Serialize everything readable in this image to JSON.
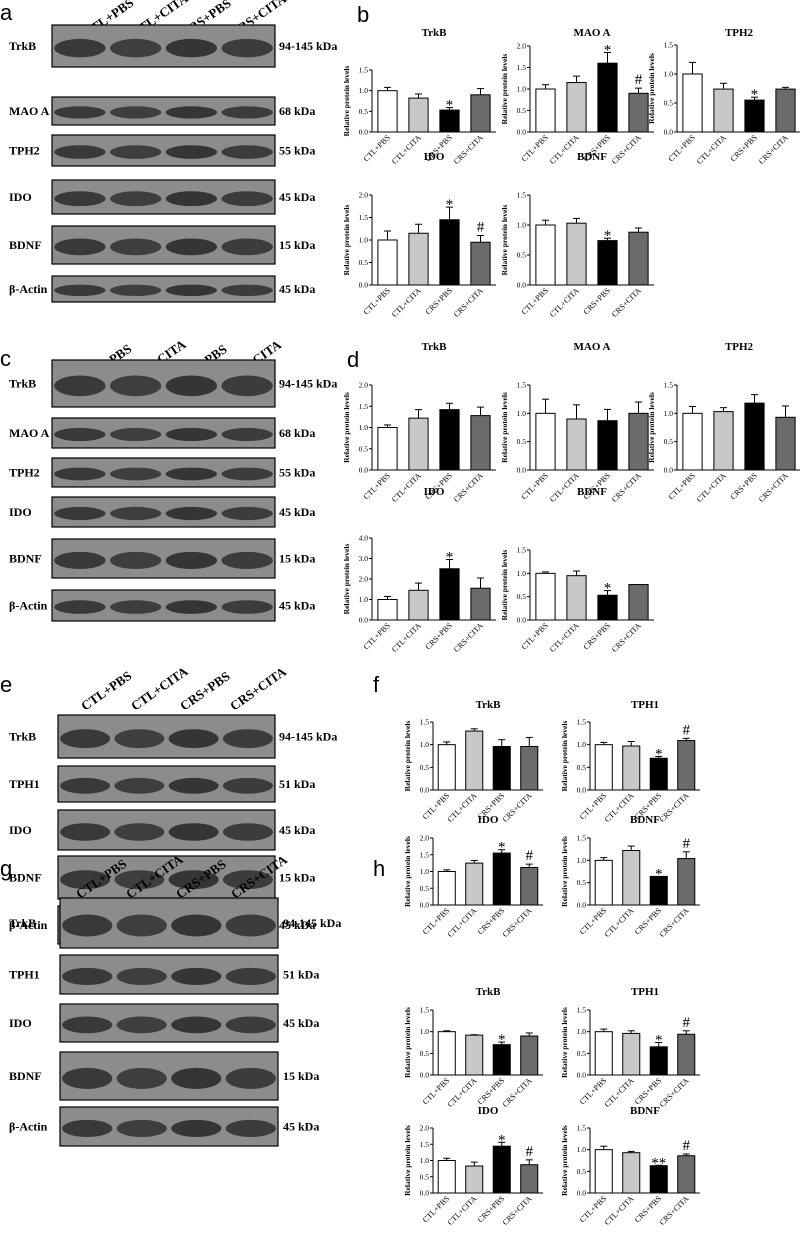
{
  "figure": {
    "panels": [
      {
        "label": "a",
        "type": "blot",
        "lanes": [
          "CTL+PBS",
          "CTL+CITA",
          "CRS+PBS",
          "CRS+CITA"
        ],
        "rows": [
          {
            "protein": "TrkB",
            "kda": "94-145 kDa"
          },
          {
            "protein": "MAO A",
            "kda": "68 kDa"
          },
          {
            "protein": "TPH2",
            "kda": "55 kDa"
          },
          {
            "protein": "IDO",
            "kda": "45 kDa"
          },
          {
            "protein": "BDNF",
            "kda": "15 kDa"
          },
          {
            "protein": "β-Actin",
            "kda": "45 kDa"
          }
        ]
      },
      {
        "label": "c",
        "type": "blot",
        "lanes": [
          "CTL+PBS",
          "CTL+CITA",
          "CRS+PBS",
          "CRS+CITA"
        ],
        "rows": [
          {
            "protein": "TrkB",
            "kda": "94-145 kDa"
          },
          {
            "protein": "MAO A",
            "kda": "68 kDa"
          },
          {
            "protein": "TPH2",
            "kda": "55 kDa"
          },
          {
            "protein": "IDO",
            "kda": "45 kDa"
          },
          {
            "protein": "BDNF",
            "kda": "15 kDa"
          },
          {
            "protein": "β-Actin",
            "kda": "45 kDa"
          }
        ]
      },
      {
        "label": "e",
        "type": "blot",
        "lanes": [
          "CTL+PBS",
          "CTL+CITA",
          "CRS+PBS",
          "CRS+CITA"
        ],
        "rows": [
          {
            "protein": "TrkB",
            "kda": "94-145 kDa"
          },
          {
            "protein": "TPH1",
            "kda": "51 kDa"
          },
          {
            "protein": "IDO",
            "kda": "45 kDa"
          },
          {
            "protein": "BDNF",
            "kda": "15 kDa"
          },
          {
            "protein": "β-Actin",
            "kda": "45 kDa"
          }
        ]
      },
      {
        "label": "g",
        "type": "blot",
        "lanes": [
          "CTL+PBS",
          "CTL+CITA",
          "CRS+PBS",
          "CRS+CITA"
        ],
        "rows": [
          {
            "protein": "TrkB",
            "kda": "94-145 kDa"
          },
          {
            "protein": "TPH1",
            "kda": "51 kDa"
          },
          {
            "protein": "IDO",
            "kda": "45 kDa"
          },
          {
            "protein": "BDNF",
            "kda": "15 kDa"
          },
          {
            "protein": "β-Actin",
            "kda": "45 kDa"
          }
        ]
      },
      {
        "label": "b",
        "type": "bars"
      },
      {
        "label": "d",
        "type": "bars"
      },
      {
        "label": "f",
        "type": "bars"
      },
      {
        "label": "h",
        "type": "bars"
      }
    ],
    "bar_colors": [
      "#ffffff",
      "#c8c8c8",
      "#000000",
      "#6b6b6b"
    ]
  },
  "chart_data": [
    {
      "panel": "b",
      "type": "bar",
      "title": "TrkB",
      "ylabel": "Relative protein levels",
      "categories": [
        "CTL+PBS",
        "CTL+CITA",
        "CRS+PBS",
        "CRS+CITA"
      ],
      "values": [
        1.0,
        0.82,
        0.53,
        0.9
      ],
      "errors": [
        0.08,
        0.1,
        0.06,
        0.15
      ],
      "ylim": [
        0,
        1.5
      ],
      "yticks": [
        "0.0",
        "0.5",
        "1.0",
        "1.5"
      ],
      "markers": [
        "",
        "",
        "*",
        ""
      ]
    },
    {
      "panel": "b",
      "type": "bar",
      "title": "MAO A",
      "ylabel": "Relative protein levels",
      "categories": [
        "CTL+PBS",
        "CTL+CITA",
        "CRS+PBS",
        "CRS+CITA"
      ],
      "values": [
        1.0,
        1.15,
        1.6,
        0.9
      ],
      "errors": [
        0.1,
        0.15,
        0.25,
        0.12
      ],
      "ylim": [
        0,
        2.0
      ],
      "yticks": [
        "0.0",
        "0.5",
        "1.0",
        "1.5",
        "2.0"
      ],
      "markers": [
        "",
        "",
        "*",
        "#"
      ]
    },
    {
      "panel": "b",
      "type": "bar",
      "title": "TPH2",
      "ylabel": "Relative protein levels",
      "categories": [
        "CTL+PBS",
        "CTL+CITA",
        "CRS+PBS",
        "CRS+CITA"
      ],
      "values": [
        1.0,
        0.74,
        0.55,
        0.74
      ],
      "errors": [
        0.2,
        0.1,
        0.05,
        0.03
      ],
      "ylim": [
        0,
        1.5
      ],
      "yticks": [
        "0.0",
        "0.5",
        "1.0",
        "1.5"
      ],
      "markers": [
        "",
        "",
        "*",
        ""
      ]
    },
    {
      "panel": "b",
      "type": "bar",
      "title": "IDO",
      "ylabel": "Relative protein levels",
      "categories": [
        "CTL+PBS",
        "CTL+CITA",
        "CRS+PBS",
        "CRS+CITA"
      ],
      "values": [
        1.0,
        1.15,
        1.45,
        0.95
      ],
      "errors": [
        0.2,
        0.2,
        0.28,
        0.15
      ],
      "ylim": [
        0,
        2.0
      ],
      "yticks": [
        "0.0",
        "0.5",
        "1.0",
        "1.5",
        "2.0"
      ],
      "markers": [
        "",
        "",
        "*",
        "#"
      ]
    },
    {
      "panel": "b",
      "type": "bar",
      "title": "BDNF",
      "ylabel": "Relative protein levels",
      "categories": [
        "CTL+PBS",
        "CTL+CITA",
        "CRS+PBS",
        "CRS+CITA"
      ],
      "values": [
        1.0,
        1.03,
        0.74,
        0.88
      ],
      "errors": [
        0.08,
        0.08,
        0.04,
        0.07
      ],
      "ylim": [
        0,
        1.5
      ],
      "yticks": [
        "0.0",
        "0.5",
        "1.0",
        "1.5"
      ],
      "markers": [
        "",
        "",
        "*",
        ""
      ]
    },
    {
      "panel": "d",
      "type": "bar",
      "title": "TrkB",
      "ylabel": "Relative protein levels",
      "categories": [
        "CTL+PBS",
        "CTL+CITA",
        "CRS+PBS",
        "CRS+CITA"
      ],
      "values": [
        1.0,
        1.22,
        1.42,
        1.28
      ],
      "errors": [
        0.06,
        0.2,
        0.15,
        0.2
      ],
      "ylim": [
        0,
        2.0
      ],
      "yticks": [
        "0.0",
        "0.5",
        "1.0",
        "1.5",
        "2.0"
      ],
      "markers": [
        "",
        "",
        "",
        ""
      ]
    },
    {
      "panel": "d",
      "type": "bar",
      "title": "MAO A",
      "ylabel": "Relative protein levels",
      "categories": [
        "CTL+PBS",
        "CTL+CITA",
        "CRS+PBS",
        "CRS+CITA"
      ],
      "values": [
        1.0,
        0.9,
        0.87,
        1.0
      ],
      "errors": [
        0.25,
        0.25,
        0.2,
        0.2
      ],
      "ylim": [
        0,
        1.5
      ],
      "yticks": [
        "0.0",
        "0.5",
        "1.0",
        "1.5"
      ],
      "markers": [
        "",
        "",
        "",
        ""
      ]
    },
    {
      "panel": "d",
      "type": "bar",
      "title": "TPH2",
      "ylabel": "Relative protein levels",
      "categories": [
        "CTL+PBS",
        "CTL+CITA",
        "CRS+PBS",
        "CRS+CITA"
      ],
      "values": [
        1.0,
        1.03,
        1.18,
        0.93
      ],
      "errors": [
        0.12,
        0.07,
        0.15,
        0.2
      ],
      "ylim": [
        0,
        1.5
      ],
      "yticks": [
        "0.0",
        "0.5",
        "1.0",
        "1.5"
      ],
      "markers": [
        "",
        "",
        "",
        ""
      ]
    },
    {
      "panel": "d",
      "type": "bar",
      "title": "IDO",
      "ylabel": "Relative protein levels",
      "categories": [
        "CTL+PBS",
        "CTL+CITA",
        "CRS+PBS",
        "CRS+CITA"
      ],
      "values": [
        1.0,
        1.45,
        2.5,
        1.55
      ],
      "errors": [
        0.15,
        0.35,
        0.45,
        0.5
      ],
      "ylim": [
        0,
        4.0
      ],
      "yticks": [
        "0.0",
        "1.0",
        "2.0",
        "3.0",
        "4.0"
      ],
      "markers": [
        "",
        "",
        "*",
        ""
      ]
    },
    {
      "panel": "d",
      "type": "bar",
      "title": "BDNF",
      "ylabel": "Relative protein levels",
      "categories": [
        "CTL+PBS",
        "CTL+CITA",
        "CRS+PBS",
        "CRS+CITA"
      ],
      "values": [
        1.0,
        0.95,
        0.53,
        0.76
      ],
      "errors": [
        0.03,
        0.1,
        0.1,
        0.0
      ],
      "ylim": [
        0,
        1.5
      ],
      "yticks": [
        "0.0",
        "0.5",
        "1.0",
        "1.5"
      ],
      "markers": [
        "",
        "",
        "*",
        ""
      ]
    },
    {
      "panel": "f",
      "type": "bar",
      "title": "TrkB",
      "ylabel": "Relative protein levels",
      "categories": [
        "CTL+PBS",
        "CTL+CITA",
        "CRS+PBS",
        "CRS+CITA"
      ],
      "values": [
        1.0,
        1.3,
        0.96,
        0.96
      ],
      "errors": [
        0.06,
        0.05,
        0.15,
        0.2
      ],
      "ylim": [
        0,
        1.5
      ],
      "yticks": [
        "0.0",
        "0.5",
        "1.0",
        "1.5"
      ],
      "markers": [
        "",
        "",
        "",
        ""
      ]
    },
    {
      "panel": "f",
      "type": "bar",
      "title": "TPH1",
      "ylabel": "Relative protein levels",
      "categories": [
        "CTL+PBS",
        "CTL+CITA",
        "CRS+PBS",
        "CRS+CITA"
      ],
      "values": [
        1.0,
        0.97,
        0.7,
        1.09
      ],
      "errors": [
        0.05,
        0.1,
        0.04,
        0.05
      ],
      "ylim": [
        0,
        1.5
      ],
      "yticks": [
        "0.0",
        "0.5",
        "1.0",
        "1.5"
      ],
      "markers": [
        "",
        "",
        "*",
        "#"
      ]
    },
    {
      "panel": "f",
      "type": "bar",
      "title": "IDO",
      "ylabel": "Relative protein levels",
      "categories": [
        "CTL+PBS",
        "CTL+CITA",
        "CRS+PBS",
        "CRS+CITA"
      ],
      "values": [
        1.0,
        1.25,
        1.55,
        1.12
      ],
      "errors": [
        0.05,
        0.08,
        0.1,
        0.1
      ],
      "ylim": [
        0,
        2.0
      ],
      "yticks": [
        "0.0",
        "0.5",
        "1.0",
        "1.5",
        "2.0"
      ],
      "markers": [
        "",
        "",
        "*",
        "#"
      ]
    },
    {
      "panel": "f",
      "type": "bar",
      "title": "BDNF",
      "ylabel": "Relative protein levels",
      "categories": [
        "CTL+PBS",
        "CTL+CITA",
        "CRS+PBS",
        "CRS+CITA"
      ],
      "values": [
        1.0,
        1.22,
        0.64,
        1.04
      ],
      "errors": [
        0.06,
        0.1,
        0.0,
        0.15
      ],
      "ylim": [
        0,
        1.5
      ],
      "yticks": [
        "0.0",
        "0.5",
        "1.0",
        "1.5"
      ],
      "markers": [
        "",
        "",
        "*",
        "#"
      ]
    },
    {
      "panel": "h",
      "type": "bar",
      "title": "TrkB",
      "ylabel": "Relative protein levels",
      "categories": [
        "CTL+PBS",
        "CTL+CITA",
        "CRS+PBS",
        "CRS+CITA"
      ],
      "values": [
        1.0,
        0.92,
        0.7,
        0.9
      ],
      "errors": [
        0.02,
        0.01,
        0.06,
        0.07
      ],
      "ylim": [
        0,
        1.5
      ],
      "yticks": [
        "0.0",
        "0.5",
        "1.0",
        "1.5"
      ],
      "markers": [
        "",
        "",
        "*",
        ""
      ]
    },
    {
      "panel": "h",
      "type": "bar",
      "title": "TPH1",
      "ylabel": "Relative protein levels",
      "categories": [
        "CTL+PBS",
        "CTL+CITA",
        "CRS+PBS",
        "CRS+CITA"
      ],
      "values": [
        1.0,
        0.96,
        0.65,
        0.94
      ],
      "errors": [
        0.06,
        0.06,
        0.1,
        0.08
      ],
      "ylim": [
        0,
        1.5
      ],
      "yticks": [
        "0.0",
        "0.5",
        "1.0",
        "1.5"
      ],
      "markers": [
        "",
        "",
        "*",
        "#"
      ]
    },
    {
      "panel": "h",
      "type": "bar",
      "title": "IDO",
      "ylabel": "Relative protein levels",
      "categories": [
        "CTL+PBS",
        "CTL+CITA",
        "CRS+PBS",
        "CRS+CITA"
      ],
      "values": [
        1.0,
        0.83,
        1.44,
        0.87
      ],
      "errors": [
        0.07,
        0.12,
        0.12,
        0.15
      ],
      "ylim": [
        0,
        2.0
      ],
      "yticks": [
        "0.0",
        "0.5",
        "1.0",
        "1.5",
        "2.0"
      ],
      "markers": [
        "",
        "",
        "*",
        "#"
      ]
    },
    {
      "panel": "h",
      "type": "bar",
      "title": "BDNF",
      "ylabel": "Relative protein levels",
      "categories": [
        "CTL+PBS",
        "CTL+CITA",
        "CRS+PBS",
        "CRS+CITA"
      ],
      "values": [
        1.0,
        0.93,
        0.63,
        0.86
      ],
      "errors": [
        0.08,
        0.03,
        0.01,
        0.04
      ],
      "ylim": [
        0,
        1.5
      ],
      "yticks": [
        "0.0",
        "0.5",
        "1.0",
        "1.5"
      ],
      "markers": [
        "",
        "",
        "**",
        "#"
      ]
    }
  ]
}
